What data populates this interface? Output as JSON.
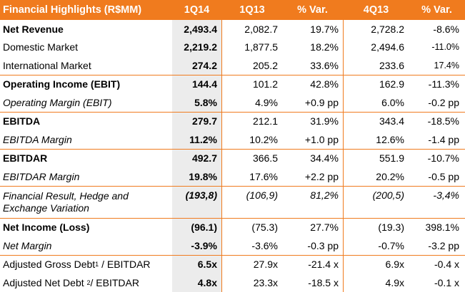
{
  "header": {
    "title": "Financial Highlights (R$MM)",
    "col1": "1Q14",
    "col2": "1Q13",
    "col3": "% Var.",
    "col4": "4Q13",
    "col5": "% Var."
  },
  "rows": [
    {
      "label": "Net Revenue",
      "v1": "2,493.4",
      "v2": "2,082.7",
      "v3": "19.7%",
      "v4": "2,728.2",
      "v5": "-8.6%"
    },
    {
      "label": "Domestic Market",
      "v1": "2,219.2",
      "v2": "1,877.5",
      "v3": "18.2%",
      "v4": "2,494.6",
      "v5": "-11.0%"
    },
    {
      "label": "International Market",
      "v1": "274.2",
      "v2": "205.2",
      "v3": "33.6%",
      "v4": "233.6",
      "v5": "17.4%"
    },
    {
      "label": "Operating Income (EBIT)",
      "v1": "144.4",
      "v2": "101.2",
      "v3": "42.8%",
      "v4": "162.9",
      "v5": "-11.3%"
    },
    {
      "label": "Operating Margin (EBIT)",
      "v1": "5.8%",
      "v2": "4.9%",
      "v3": "+0.9 pp",
      "v4": "6.0%",
      "v5": "-0.2 pp"
    },
    {
      "label": "EBITDA",
      "v1": "279.7",
      "v2": "212.1",
      "v3": "31.9%",
      "v4": "343.4",
      "v5": "-18.5%"
    },
    {
      "label": "EBITDA Margin",
      "v1": "11.2%",
      "v2": "10.2%",
      "v3": "+1.0 pp",
      "v4": "12.6%",
      "v5": "-1.4 pp"
    },
    {
      "label": "EBITDAR",
      "v1": "492.7",
      "v2": "366.5",
      "v3": "34.4%",
      "v4": "551.9",
      "v5": "-10.7%"
    },
    {
      "label": "EBITDAR Margin",
      "v1": "19.8%",
      "v2": "17.6%",
      "v3": "+2.2 pp",
      "v4": "20.2%",
      "v5": "-0.5 pp"
    },
    {
      "label": "Financial Result, Hedge and Exchange Variation",
      "v1": "(193,8)",
      "v2": "(106,9)",
      "v3": "81,2%",
      "v4": "(200,5)",
      "v5": "-3,4%"
    },
    {
      "label": "Net Income (Loss)",
      "v1": "(96.1)",
      "v2": "(75.3)",
      "v3": "27.7%",
      "v4": "(19.3)",
      "v5": "398.1%"
    },
    {
      "label": "Net Margin",
      "v1": "-3.9%",
      "v2": "-3.6%",
      "v3": "-0.3 pp",
      "v4": "-0.7%",
      "v5": "-3.2 pp"
    },
    {
      "label_a": "Adjusted Gross Debt",
      "sup": "1",
      "label_b": " / EBITDAR",
      "v1": "6.5x",
      "v2": "27.9x",
      "v3": "-21.4 x",
      "v4": "6.9x",
      "v5": "-0.4 x"
    },
    {
      "label_a": "Adjusted Net Debt ",
      "sup": "2",
      "label_b": "/ EBITDAR",
      "v1": "4.8x",
      "v2": "23.3x",
      "v3": "-18.5 x",
      "v4": "4.9x",
      "v5": "-0.1 x"
    }
  ],
  "colors": {
    "accent": "#f07b1e",
    "highlight_column": "#ececec"
  }
}
